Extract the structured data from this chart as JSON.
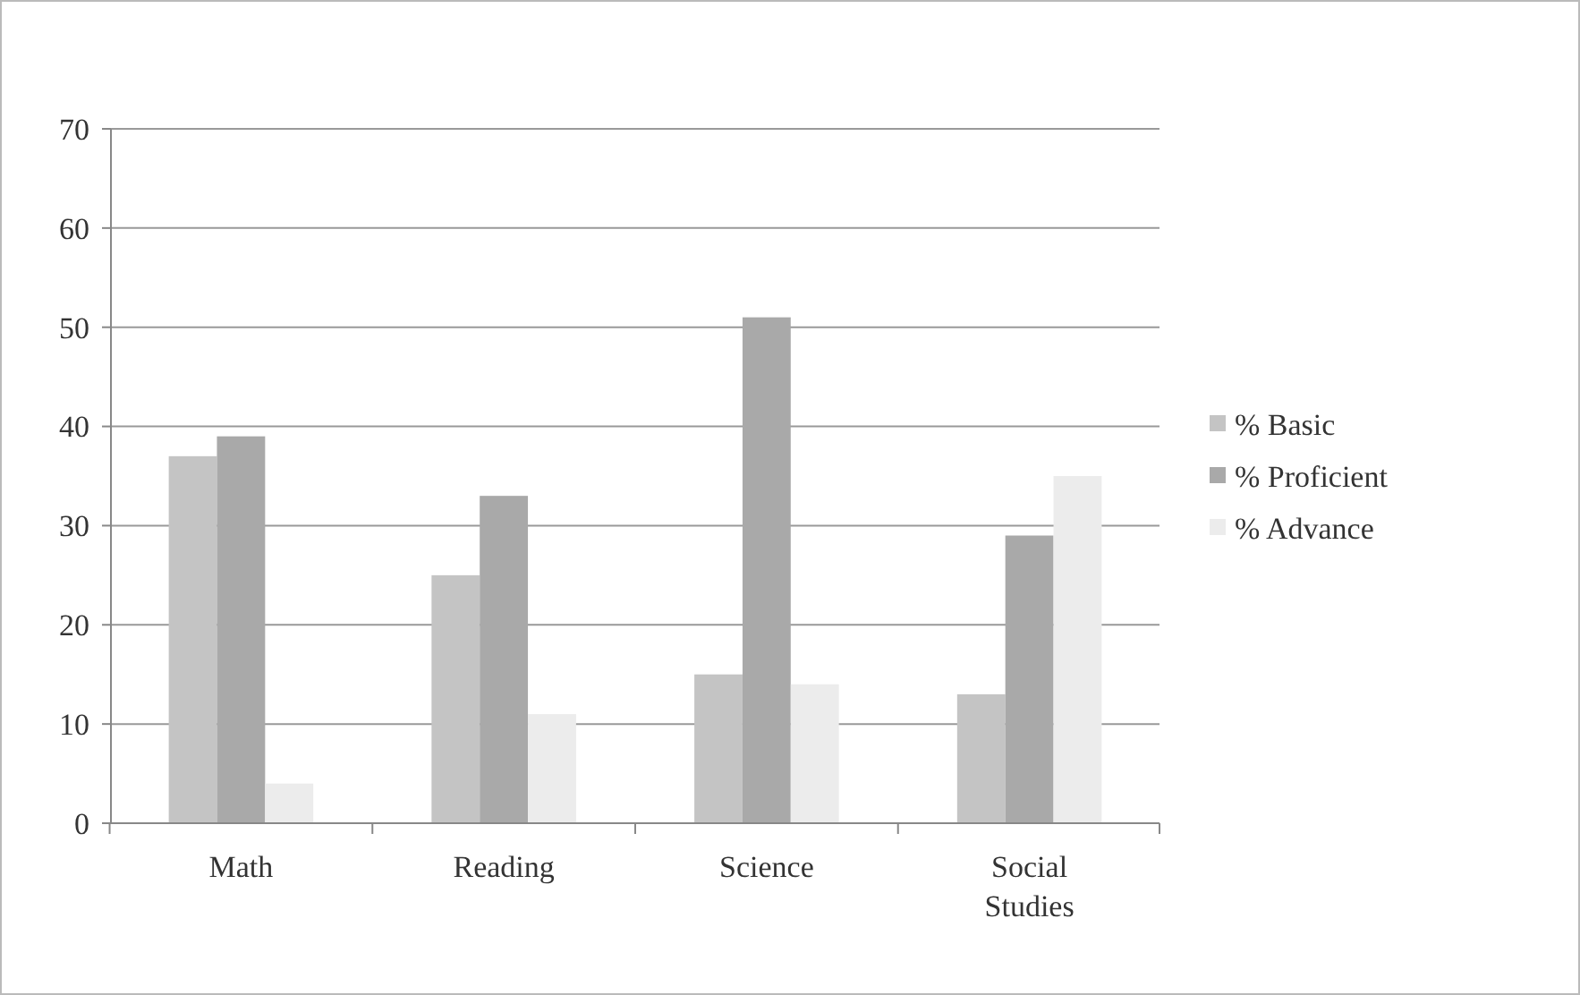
{
  "chart_data": {
    "type": "bar",
    "categories": [
      "Math",
      "Reading",
      "Science",
      "Social Studies"
    ],
    "series": [
      {
        "name": "% Basic",
        "color": "#c4c4c4",
        "values": [
          37,
          25,
          15,
          13
        ]
      },
      {
        "name": "% Proficient",
        "color": "#a9a9a9",
        "values": [
          39,
          33,
          51,
          29
        ]
      },
      {
        "name": "% Advance",
        "color": "#ececec",
        "values": [
          4,
          11,
          14,
          35
        ]
      }
    ],
    "ylim": [
      0,
      70
    ],
    "yticks": [
      0,
      10,
      20,
      30,
      40,
      50,
      60,
      70
    ],
    "grid": "y",
    "legend": "right"
  }
}
